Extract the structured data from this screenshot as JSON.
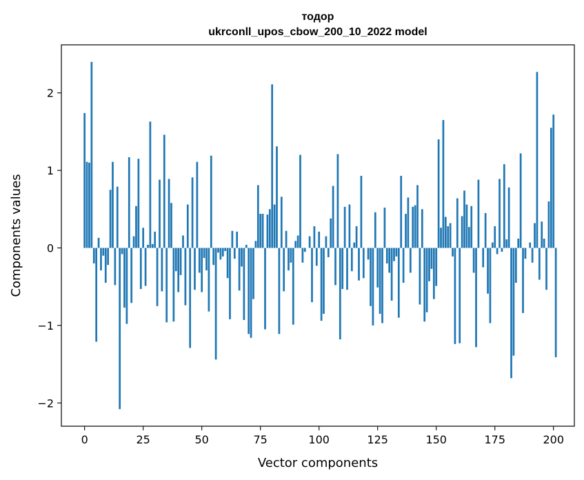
{
  "chart_data": {
    "type": "bar",
    "title_line1": "тодор",
    "title_line2": "ukrconll_upos_cbow_200_10_2022 model",
    "xlabel": "Vector components",
    "ylabel": "Components values",
    "xlim": [
      -9.9,
      208.9
    ],
    "ylim": [
      -2.3,
      2.62
    ],
    "grid": false,
    "legend": "none",
    "bar_color": "#1f77b4",
    "x_ticks": [
      {
        "value": 0,
        "label": "0"
      },
      {
        "value": 25,
        "label": "25"
      },
      {
        "value": 50,
        "label": "50"
      },
      {
        "value": 75,
        "label": "75"
      },
      {
        "value": 100,
        "label": "100"
      },
      {
        "value": 125,
        "label": "125"
      },
      {
        "value": 150,
        "label": "150"
      },
      {
        "value": 175,
        "label": "175"
      },
      {
        "value": 200,
        "label": "200"
      }
    ],
    "y_ticks": [
      {
        "value": -2,
        "label": "−2"
      },
      {
        "value": -1,
        "label": "−1"
      },
      {
        "value": 0,
        "label": "0"
      },
      {
        "value": 1,
        "label": "1"
      },
      {
        "value": 2,
        "label": "2"
      }
    ],
    "values": [
      1.74,
      1.11,
      1.1,
      2.4,
      -0.2,
      -1.21,
      0.13,
      -0.29,
      -0.1,
      -0.45,
      -0.22,
      0.75,
      1.11,
      -0.48,
      0.79,
      -2.08,
      -0.08,
      -0.77,
      -0.98,
      1.17,
      -0.71,
      0.15,
      0.54,
      1.15,
      -0.53,
      0.26,
      -0.49,
      0.04,
      1.63,
      0.05,
      0.21,
      -0.75,
      0.88,
      -0.56,
      1.46,
      -0.96,
      0.89,
      0.58,
      -0.95,
      -0.3,
      -0.57,
      -0.35,
      0.16,
      -0.74,
      0.56,
      -1.29,
      0.91,
      -0.54,
      1.11,
      -0.32,
      -0.57,
      -0.13,
      -0.29,
      -0.82,
      1.19,
      -0.22,
      -1.44,
      -0.06,
      -0.15,
      -0.11,
      -0.04,
      -0.39,
      -0.92,
      0.22,
      -0.14,
      0.21,
      -0.55,
      -0.24,
      -0.93,
      0.04,
      -1.11,
      -1.16,
      -0.66,
      0.09,
      0.81,
      0.44,
      0.44,
      -1.05,
      0.43,
      0.5,
      2.11,
      0.56,
      1.31,
      -1.11,
      0.66,
      -0.56,
      0.22,
      -0.29,
      -0.19,
      -0.99,
      0.09,
      0.16,
      1.2,
      -0.19,
      -0.05,
      0.0,
      0.15,
      -0.7,
      0.28,
      -0.23,
      0.21,
      -0.94,
      -0.85,
      0.15,
      -0.12,
      0.38,
      0.8,
      -0.48,
      1.21,
      -1.18,
      -0.53,
      0.53,
      -0.54,
      0.56,
      -0.3,
      0.07,
      0.28,
      -0.42,
      0.93,
      -0.39,
      0.0,
      -0.15,
      -0.75,
      -1.0,
      0.46,
      -0.51,
      -0.85,
      -0.97,
      0.52,
      -0.2,
      -0.32,
      -0.68,
      -0.17,
      -0.11,
      -0.9,
      0.93,
      -0.45,
      0.44,
      0.65,
      -0.32,
      0.53,
      0.55,
      0.81,
      -0.73,
      0.5,
      -0.95,
      -0.83,
      -0.43,
      -0.27,
      -0.66,
      -0.49,
      1.4,
      0.26,
      1.65,
      0.4,
      0.28,
      0.32,
      -0.11,
      -1.24,
      0.64,
      -1.23,
      0.41,
      0.74,
      0.56,
      0.27,
      0.54,
      -0.32,
      -1.28,
      0.88,
      0.0,
      -0.25,
      0.45,
      -0.59,
      -0.97,
      0.07,
      0.28,
      -0.08,
      0.89,
      -0.05,
      1.08,
      0.11,
      0.78,
      -1.68,
      -1.39,
      -0.45,
      0.12,
      1.22,
      -0.84,
      -0.14,
      0.0,
      0.07,
      -0.19,
      0.32,
      2.27,
      -0.41,
      0.34,
      0.12,
      -0.54,
      0.6,
      1.55,
      1.72,
      -1.41
    ]
  }
}
